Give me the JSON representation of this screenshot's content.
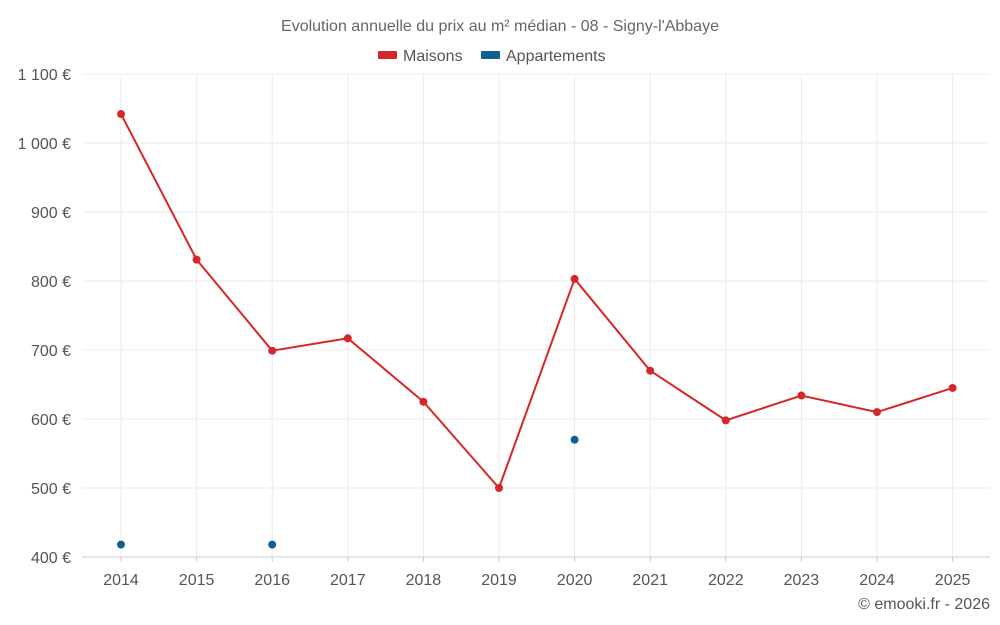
{
  "chart_data": {
    "type": "line",
    "title": "Evolution annuelle du prix au m² médian - 08 - Signy-l'Abbaye",
    "categories": [
      "2014",
      "2015",
      "2016",
      "2017",
      "2018",
      "2019",
      "2020",
      "2021",
      "2022",
      "2023",
      "2024",
      "2025"
    ],
    "ylim": [
      400,
      1100
    ],
    "yticks": [
      400,
      500,
      600,
      700,
      800,
      900,
      1000,
      1100
    ],
    "ytick_labels": [
      "400 €",
      "500 €",
      "600 €",
      "700 €",
      "800 €",
      "900 €",
      "1 000 €",
      "1 100 €"
    ],
    "grid": true,
    "legend_position": "top-center",
    "series": [
      {
        "name": "Maisons",
        "color": "#d62728",
        "style": "line",
        "values": [
          1042,
          831,
          699,
          717,
          625,
          500,
          803,
          670,
          598,
          634,
          610,
          645
        ]
      },
      {
        "name": "Appartements",
        "color": "#0f5f96",
        "style": "points",
        "values": [
          418,
          null,
          418,
          null,
          null,
          null,
          570,
          null,
          null,
          null,
          null,
          null
        ]
      }
    ],
    "credit": "© emooki.fr - 2026"
  }
}
